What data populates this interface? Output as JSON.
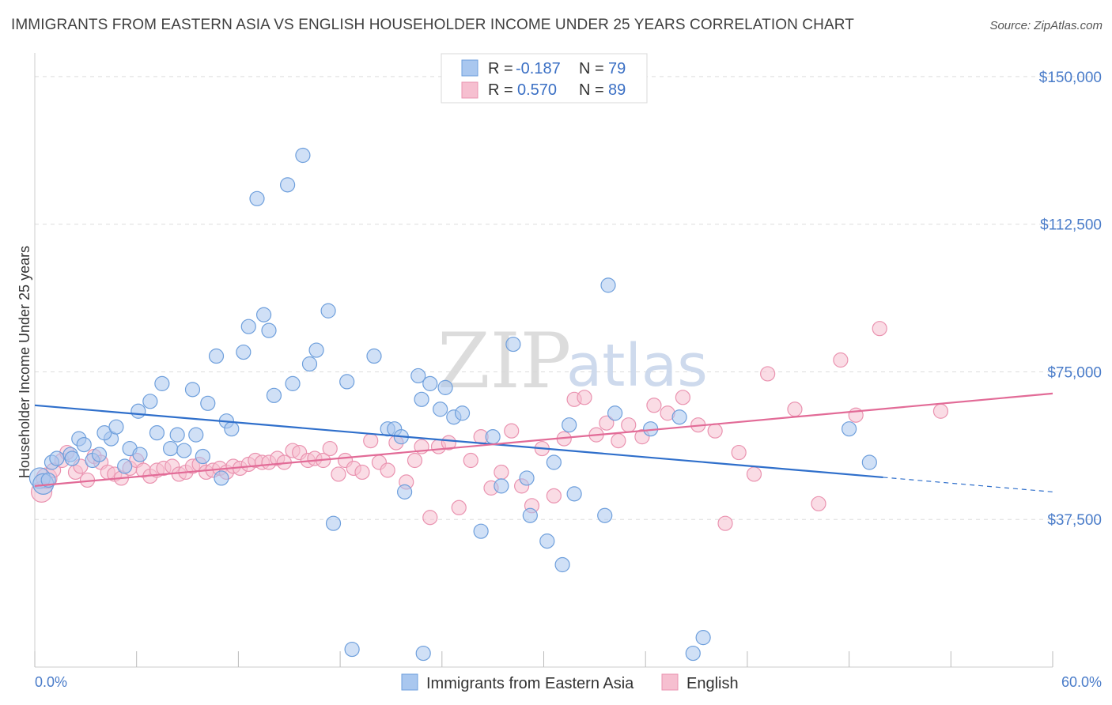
{
  "title": "IMMIGRANTS FROM EASTERN ASIA VS ENGLISH HOUSEHOLDER INCOME UNDER 25 YEARS CORRELATION CHART",
  "source": "Source: ZipAtlas.com",
  "watermark": {
    "part1": "ZIP",
    "part2": "atlas"
  },
  "legend": {
    "rows": [
      {
        "r_label": "R =",
        "r_value": "-0.187",
        "n_label": "N =",
        "n_value": "79"
      },
      {
        "r_label": "R =",
        "r_value": "0.570",
        "n_label": "N =",
        "n_value": "89"
      }
    ]
  },
  "colors": {
    "blue_fill": "#a9c7ef",
    "blue_stroke": "#6e9fdc",
    "blue_line": "#2f6fcb",
    "pink_fill": "#f6bfd0",
    "pink_stroke": "#ea93b0",
    "pink_line": "#e26b97",
    "tick_text": "#4a7cc9",
    "grid": "#dddddd"
  },
  "chart_data": {
    "type": "scatter",
    "title": "IMMIGRANTS FROM EASTERN ASIA VS ENGLISH HOUSEHOLDER INCOME UNDER 25 YEARS CORRELATION CHART",
    "xlabel": "",
    "ylabel": "Householder Income Under 25 years",
    "xlim": [
      0,
      60
    ],
    "ylim": [
      0,
      155000
    ],
    "x_tick_labels": [
      "0.0%",
      "60.0%"
    ],
    "y_tick_labels": [
      "$150,000",
      "$112,500",
      "$75,000",
      "$37,500"
    ],
    "y_ticks": [
      150000,
      112500,
      75000,
      37500
    ],
    "grid": true,
    "legend_position": "top-center",
    "series": [
      {
        "name": "Immigrants from Eastern Asia",
        "color": "#a9c7ef",
        "trend": {
          "x0": 0,
          "y0": 66500,
          "x1": 50,
          "y1": 48200,
          "dashed_to_x": 60,
          "dashed_to_y": 44500
        },
        "points": [
          [
            0.3,
            48000,
            "lg"
          ],
          [
            0.5,
            46500,
            "lg"
          ],
          [
            0.8,
            47500
          ],
          [
            1.0,
            52000
          ],
          [
            1.3,
            53000
          ],
          [
            2.1,
            54000
          ],
          [
            2.2,
            53000
          ],
          [
            2.6,
            58000
          ],
          [
            2.9,
            56500
          ],
          [
            3.4,
            52500
          ],
          [
            3.8,
            54000
          ],
          [
            4.5,
            58000
          ],
          [
            4.1,
            59500
          ],
          [
            4.8,
            61000
          ],
          [
            5.3,
            51000
          ],
          [
            5.6,
            55500
          ],
          [
            6.2,
            54000
          ],
          [
            6.1,
            65000
          ],
          [
            6.8,
            67500
          ],
          [
            7.2,
            59500
          ],
          [
            7.5,
            72000
          ],
          [
            8.0,
            55500
          ],
          [
            8.4,
            59000
          ],
          [
            8.8,
            55000
          ],
          [
            9.3,
            70500
          ],
          [
            9.5,
            59000
          ],
          [
            9.9,
            53500
          ],
          [
            10.2,
            67000
          ],
          [
            10.7,
            79000
          ],
          [
            11.0,
            48000
          ],
          [
            11.3,
            62500
          ],
          [
            11.6,
            60500
          ],
          [
            12.3,
            80000
          ],
          [
            12.6,
            86500
          ],
          [
            13.1,
            119000
          ],
          [
            13.5,
            89500
          ],
          [
            13.8,
            85500
          ],
          [
            14.1,
            69000
          ],
          [
            14.9,
            122500
          ],
          [
            15.2,
            72000
          ],
          [
            15.8,
            130000
          ],
          [
            16.2,
            77000
          ],
          [
            16.6,
            80500
          ],
          [
            17.3,
            90500
          ],
          [
            17.6,
            36500
          ],
          [
            18.4,
            72500
          ],
          [
            18.7,
            4500
          ],
          [
            20.0,
            79000
          ],
          [
            20.8,
            60500
          ],
          [
            21.2,
            60500
          ],
          [
            21.6,
            58500
          ],
          [
            21.8,
            44500
          ],
          [
            22.6,
            74000
          ],
          [
            22.8,
            68000
          ],
          [
            22.9,
            3500
          ],
          [
            23.3,
            72000
          ],
          [
            23.9,
            65500
          ],
          [
            24.2,
            71000
          ],
          [
            24.7,
            63500
          ],
          [
            25.2,
            64500
          ],
          [
            26.3,
            34500
          ],
          [
            27.0,
            58500
          ],
          [
            27.5,
            46000
          ],
          [
            28.2,
            82000
          ],
          [
            29.0,
            48000
          ],
          [
            29.2,
            38500
          ],
          [
            30.2,
            32000
          ],
          [
            30.6,
            52000
          ],
          [
            31.1,
            26000
          ],
          [
            31.5,
            61500
          ],
          [
            31.8,
            44000
          ],
          [
            33.8,
            97000
          ],
          [
            34.2,
            64500
          ],
          [
            33.6,
            38500
          ],
          [
            36.3,
            60500
          ],
          [
            38.0,
            63500
          ],
          [
            38.8,
            3500
          ],
          [
            39.4,
            7500
          ],
          [
            48.0,
            60500
          ],
          [
            49.2,
            52000
          ]
        ]
      },
      {
        "name": "English",
        "color": "#f6bfd0",
        "trend": {
          "x0": 0,
          "y0": 46000,
          "x1": 60,
          "y1": 69500
        },
        "points": [
          [
            0.4,
            44500,
            "lg"
          ],
          [
            0.7,
            48000,
            "lg"
          ],
          [
            1.1,
            50000
          ],
          [
            1.6,
            52500
          ],
          [
            1.9,
            54500
          ],
          [
            2.4,
            49500
          ],
          [
            2.7,
            51000
          ],
          [
            3.1,
            47500
          ],
          [
            3.5,
            53500
          ],
          [
            3.9,
            52000
          ],
          [
            4.3,
            49500
          ],
          [
            4.7,
            49000
          ],
          [
            5.1,
            48000
          ],
          [
            5.6,
            50500
          ],
          [
            6.0,
            52500
          ],
          [
            6.4,
            50000
          ],
          [
            6.8,
            48500
          ],
          [
            7.2,
            50000
          ],
          [
            7.6,
            50500
          ],
          [
            8.1,
            51000
          ],
          [
            8.5,
            49000
          ],
          [
            8.9,
            49500
          ],
          [
            9.3,
            51000
          ],
          [
            9.7,
            51500
          ],
          [
            10.1,
            49500
          ],
          [
            10.5,
            50000
          ],
          [
            10.9,
            50500
          ],
          [
            11.3,
            49500
          ],
          [
            11.7,
            51000
          ],
          [
            12.1,
            50500
          ],
          [
            12.6,
            51500
          ],
          [
            13.0,
            52500
          ],
          [
            13.4,
            52000
          ],
          [
            13.8,
            52000
          ],
          [
            14.3,
            53000
          ],
          [
            14.7,
            52000
          ],
          [
            15.2,
            55000
          ],
          [
            15.6,
            54500
          ],
          [
            16.1,
            52500
          ],
          [
            16.5,
            53000
          ],
          [
            17.0,
            52500
          ],
          [
            17.4,
            55500
          ],
          [
            17.9,
            49000
          ],
          [
            18.3,
            52500
          ],
          [
            18.8,
            50500
          ],
          [
            19.3,
            49500
          ],
          [
            19.8,
            57500
          ],
          [
            20.3,
            52000
          ],
          [
            20.8,
            50000
          ],
          [
            21.3,
            57000
          ],
          [
            21.9,
            47000
          ],
          [
            22.4,
            52500
          ],
          [
            22.8,
            56000
          ],
          [
            23.3,
            38000
          ],
          [
            23.8,
            56000
          ],
          [
            24.4,
            57000
          ],
          [
            25.0,
            40500
          ],
          [
            25.7,
            52500
          ],
          [
            26.3,
            58500
          ],
          [
            26.9,
            45500
          ],
          [
            27.5,
            49500
          ],
          [
            28.1,
            60000
          ],
          [
            28.7,
            46000
          ],
          [
            29.3,
            41000
          ],
          [
            29.9,
            55500
          ],
          [
            30.6,
            43500
          ],
          [
            31.2,
            58000
          ],
          [
            31.8,
            68000
          ],
          [
            32.4,
            68500
          ],
          [
            33.1,
            59000
          ],
          [
            33.7,
            62000
          ],
          [
            34.4,
            57500
          ],
          [
            35.0,
            61500
          ],
          [
            35.8,
            58500
          ],
          [
            36.5,
            66500
          ],
          [
            37.3,
            64500
          ],
          [
            38.2,
            68500
          ],
          [
            39.1,
            61500
          ],
          [
            40.1,
            60000
          ],
          [
            40.7,
            36500
          ],
          [
            41.5,
            54500
          ],
          [
            42.4,
            49000
          ],
          [
            43.2,
            74500
          ],
          [
            44.8,
            65500
          ],
          [
            46.2,
            41500
          ],
          [
            47.5,
            78000
          ],
          [
            48.4,
            64000
          ],
          [
            49.8,
            86000
          ],
          [
            53.4,
            65000
          ]
        ]
      }
    ]
  }
}
